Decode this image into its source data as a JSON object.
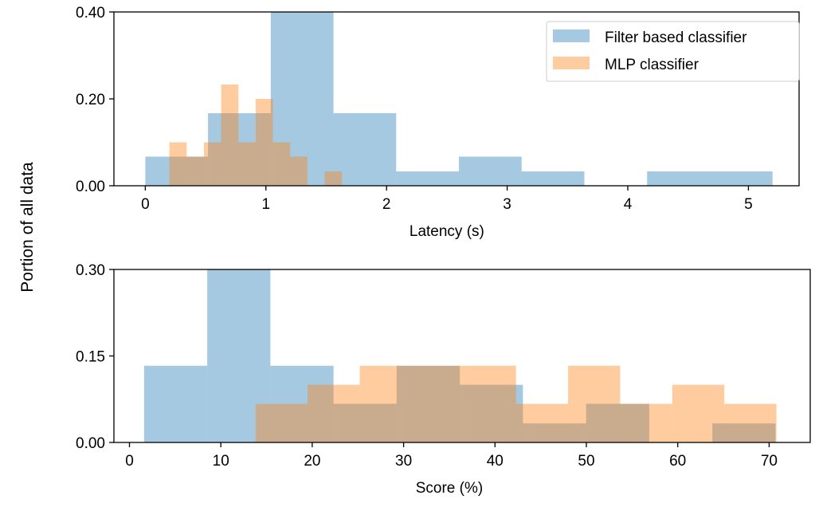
{
  "shared_ylabel": "Portion of all data",
  "colors": {
    "filter": "#1f77b4",
    "mlp": "#ff7f0e"
  },
  "legend": {
    "placement": "top-right",
    "entries": [
      "Filter based classifier",
      "MLP classifier"
    ]
  },
  "chart_data": [
    {
      "type": "histogram",
      "xlabel": "Latency (s)",
      "ylabel": "Portion of all data",
      "xlim": [
        -0.26,
        5.42
      ],
      "ylim": [
        0,
        0.4
      ],
      "xticks": [
        0,
        1,
        2,
        3,
        4,
        5
      ],
      "yticks": [
        0.0,
        0.2,
        0.4
      ],
      "ytick_labels": [
        "0.00",
        "0.20",
        "0.40"
      ],
      "grid": false,
      "series": [
        {
          "name": "Filter based classifier",
          "bin_edges": [
            0,
            0.52,
            1.04,
            1.56,
            2.08,
            2.6,
            3.12,
            3.64,
            4.16,
            4.68,
            5.2
          ],
          "values": [
            0.067,
            0.167,
            0.4,
            0.167,
            0.033,
            0.067,
            0.033,
            0,
            0.033,
            0.033
          ]
        },
        {
          "name": "MLP classifier",
          "bin_edges": [
            0.2,
            0.343,
            0.486,
            0.629,
            0.772,
            0.915,
            1.058,
            1.201,
            1.344,
            1.487,
            1.63
          ],
          "values": [
            0.1,
            0.067,
            0.1,
            0.233,
            0.1,
            0.2,
            0.1,
            0.067,
            0,
            0.033
          ]
        }
      ]
    },
    {
      "type": "histogram",
      "xlabel": "Score (%)",
      "ylabel": "Portion of all data",
      "xlim": [
        -1.7,
        74.5
      ],
      "ylim": [
        0,
        0.3
      ],
      "xticks": [
        0,
        10,
        20,
        30,
        40,
        50,
        60,
        70
      ],
      "yticks": [
        0.0,
        0.15,
        0.3
      ],
      "ytick_labels": [
        "0.00",
        "0.15",
        "0.30"
      ],
      "grid": false,
      "series": [
        {
          "name": "Filter based classifier",
          "bin_edges": [
            1.6,
            8.51,
            15.42,
            22.33,
            29.24,
            36.15,
            43.06,
            49.97,
            56.88,
            63.79,
            70.7
          ],
          "values": [
            0.133,
            0.3,
            0.133,
            0.067,
            0.133,
            0.1,
            0.033,
            0.067,
            0,
            0.033
          ]
        },
        {
          "name": "MLP classifier",
          "bin_edges": [
            13.8,
            19.5,
            25.2,
            30.9,
            36.6,
            42.3,
            48.0,
            53.7,
            59.4,
            65.1,
            70.8
          ],
          "values": [
            0.067,
            0.1,
            0.133,
            0.133,
            0.133,
            0.067,
            0.133,
            0.067,
            0.1,
            0.067
          ]
        }
      ]
    }
  ]
}
